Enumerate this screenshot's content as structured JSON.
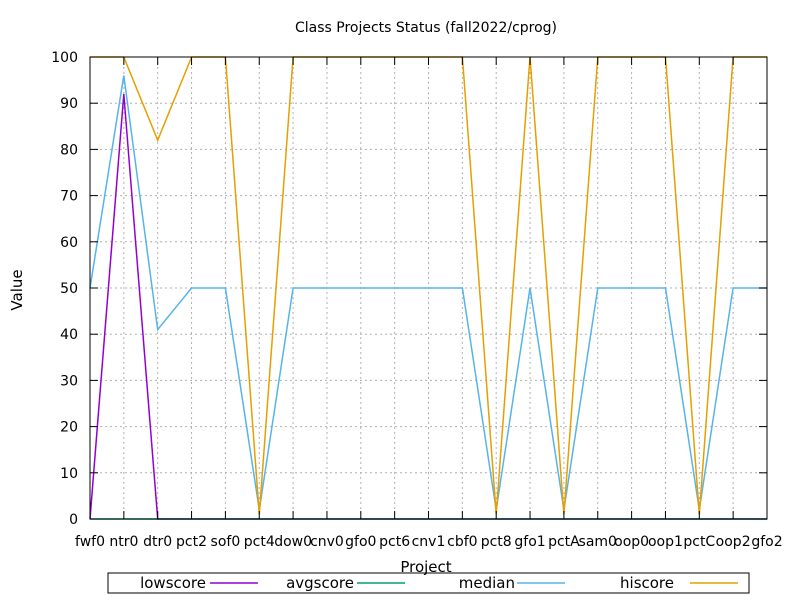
{
  "chart_data": {
    "type": "line",
    "title": "Class Projects Status (fall2022/cprog)",
    "xlabel": "Project",
    "ylabel": "Value",
    "ylim": [
      0,
      100
    ],
    "yticks": [
      0,
      10,
      20,
      30,
      40,
      50,
      60,
      70,
      80,
      90,
      100
    ],
    "grid": true,
    "legend": "bottom",
    "categories": [
      "fwf0",
      "ntr0",
      "dtr0",
      "pct2",
      "sof0",
      "pct4",
      "dow0",
      "cnv0",
      "gfo0",
      "pct6",
      "cnv1",
      "cbf0",
      "pct8",
      "gfo1",
      "pctA",
      "sam0",
      "oop0",
      "oop1",
      "pctC",
      "oop2",
      "gfo2"
    ],
    "series": [
      {
        "name": "lowscore",
        "color": "#9400d3",
        "values": [
          0,
          92,
          0,
          0,
          0,
          0,
          0,
          0,
          0,
          0,
          0,
          0,
          0,
          0,
          0,
          0,
          0,
          0,
          0,
          0,
          0
        ]
      },
      {
        "name": "avgscore",
        "color": "#009e73",
        "values": [
          0,
          0,
          0,
          0,
          0,
          0,
          0,
          0,
          0,
          0,
          0,
          0,
          0,
          0,
          0,
          0,
          0,
          0,
          0,
          0,
          0
        ]
      },
      {
        "name": "median",
        "color": "#56b4e9",
        "values": [
          50,
          96,
          41,
          50,
          50,
          2,
          50,
          50,
          50,
          50,
          50,
          50,
          2,
          50,
          2,
          50,
          50,
          50,
          2,
          50,
          50
        ]
      },
      {
        "name": "hiscore",
        "color": "#e69f00",
        "values": [
          100,
          100,
          82,
          100,
          100,
          1,
          100,
          100,
          100,
          100,
          100,
          100,
          1,
          100,
          1,
          100,
          100,
          100,
          1,
          100,
          100
        ]
      }
    ]
  }
}
